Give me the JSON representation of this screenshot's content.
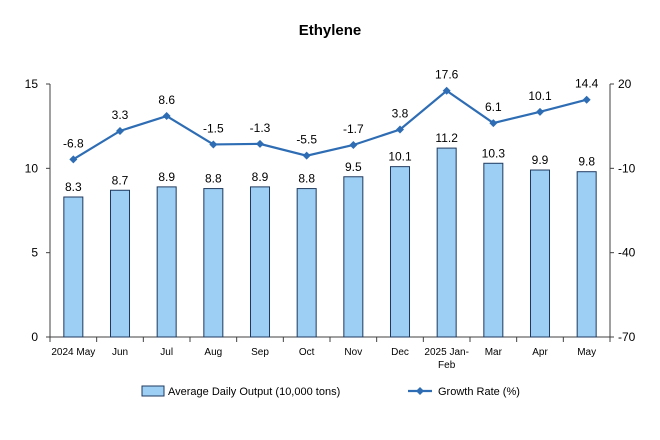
{
  "chart_data": {
    "type": "bar",
    "title": "Ethylene",
    "categories": [
      "2024 May",
      "Jun",
      "Jul",
      "Aug",
      "Sep",
      "Oct",
      "Nov",
      "Dec",
      "2025 Jan-Feb",
      "Mar",
      "Apr",
      "May"
    ],
    "series": [
      {
        "name": "Average Daily Output (10,000 tons)",
        "type": "bar",
        "axis": "left",
        "values": [
          8.3,
          8.7,
          8.9,
          8.8,
          8.9,
          8.8,
          9.5,
          10.1,
          11.2,
          10.3,
          9.9,
          9.8
        ],
        "labels": [
          "8.3",
          "8.7",
          "8.9",
          "8.8",
          "8.9",
          "8.8",
          "9.5",
          "10.1",
          "11.2",
          "10.3",
          "9.9",
          "9.8"
        ]
      },
      {
        "name": "Growth Rate (%)",
        "type": "line",
        "axis": "right",
        "values": [
          -6.8,
          3.3,
          8.6,
          -1.5,
          -1.3,
          -5.5,
          -1.7,
          3.8,
          17.6,
          6.1,
          10.1,
          14.4
        ],
        "labels": [
          "-6.8",
          "3.3",
          "8.6",
          "-1.5",
          "-1.3",
          "-5.5",
          "-1.7",
          "3.8",
          "17.6",
          "6.1",
          "10.1",
          "14.4"
        ]
      }
    ],
    "y_left": {
      "ylim": [
        0,
        15
      ],
      "ticks": [
        0,
        5,
        10,
        15
      ]
    },
    "y_right": {
      "ylim": [
        -70,
        20
      ],
      "ticks": [
        -70,
        -40,
        -10,
        20
      ]
    },
    "legend": {
      "position": "bottom"
    },
    "grid": false,
    "colors": {
      "bar_fill": "#9DCFF5",
      "bar_stroke": "#1F3A5F",
      "line": "#2E6DB4",
      "axis": "#404040"
    }
  }
}
